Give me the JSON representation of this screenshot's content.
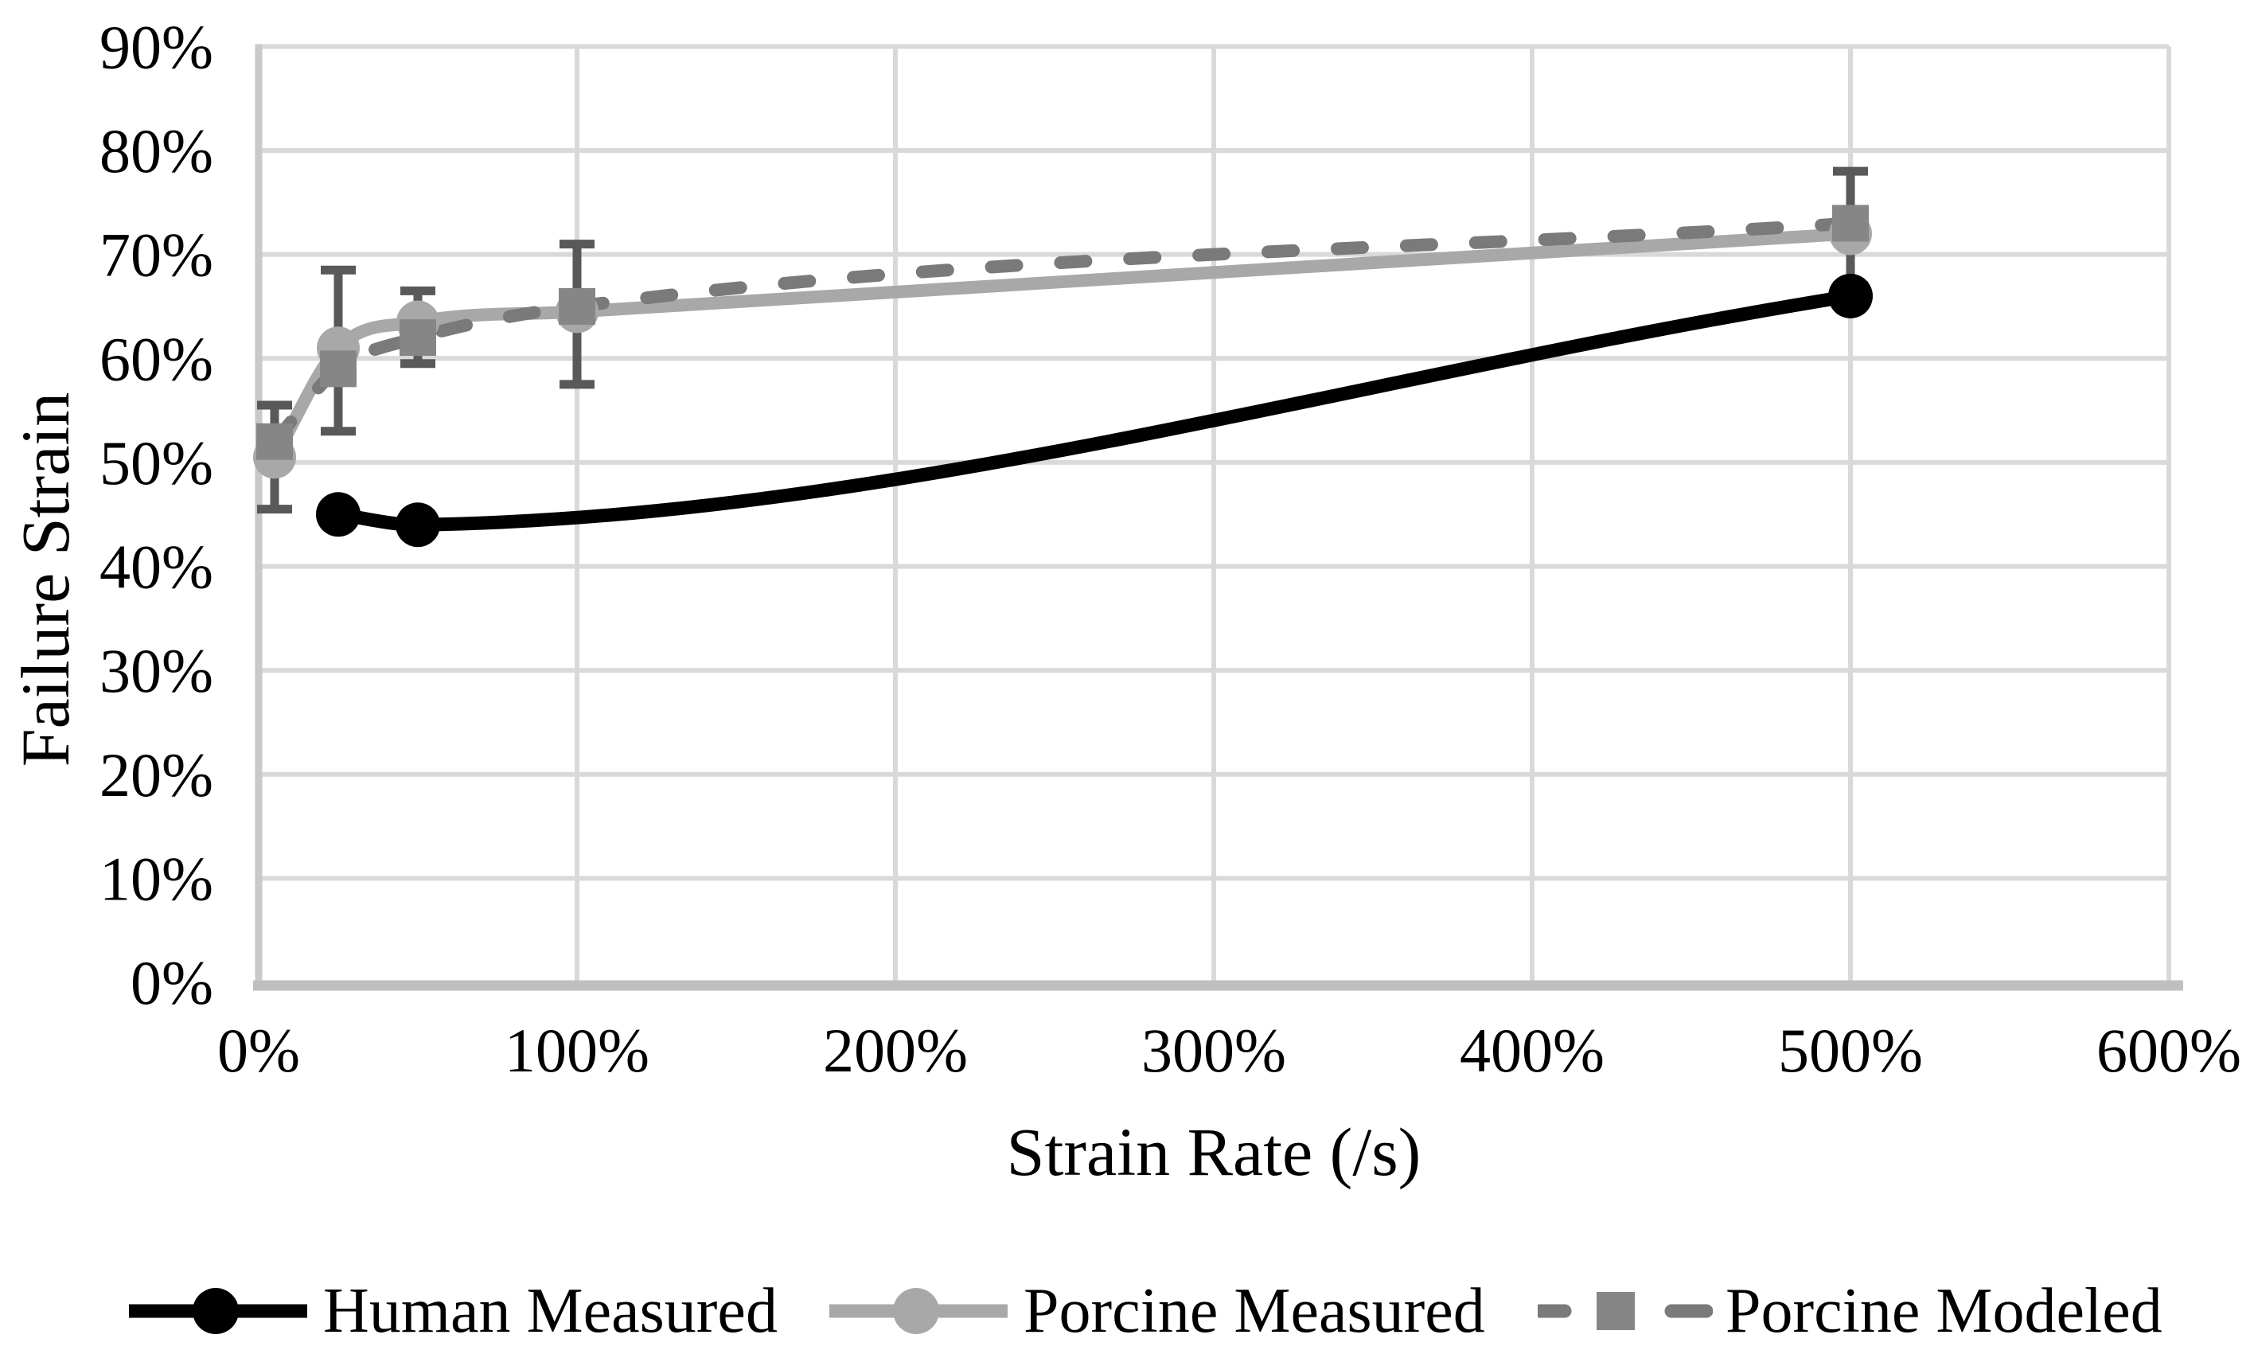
{
  "chart_data": {
    "type": "line",
    "xlabel": "Strain Rate (/s)",
    "ylabel": "Failure Strain",
    "xlim": [
      0,
      600
    ],
    "ylim": [
      0,
      90
    ],
    "grid": true,
    "legend_position": "bottom",
    "x_ticks": [
      {
        "value": 0,
        "label": "0%"
      },
      {
        "value": 100,
        "label": "100%"
      },
      {
        "value": 200,
        "label": "200%"
      },
      {
        "value": 300,
        "label": "300%"
      },
      {
        "value": 400,
        "label": "400%"
      },
      {
        "value": 500,
        "label": "500%"
      },
      {
        "value": 600,
        "label": "600%"
      }
    ],
    "y_ticks": [
      {
        "value": 0,
        "label": "0%"
      },
      {
        "value": 10,
        "label": "10%"
      },
      {
        "value": 20,
        "label": "20%"
      },
      {
        "value": 30,
        "label": "30%"
      },
      {
        "value": 40,
        "label": "40%"
      },
      {
        "value": 50,
        "label": "50%"
      },
      {
        "value": 60,
        "label": "60%"
      },
      {
        "value": 70,
        "label": "70%"
      },
      {
        "value": 80,
        "label": "80%"
      },
      {
        "value": 90,
        "label": "90%"
      }
    ],
    "series": [
      {
        "name": "Human Measured",
        "line": "solid",
        "marker": "circle",
        "color": "#000000",
        "marker_color": "#000000",
        "x": [
          25,
          50,
          500
        ],
        "y": [
          45,
          44,
          66
        ]
      },
      {
        "name": "Porcine Measured",
        "line": "solid",
        "marker": "circle",
        "color": "#a8a8a8",
        "marker_color": "#a8a8a8",
        "x": [
          5,
          25,
          50,
          100,
          500
        ],
        "y": [
          50.5,
          61,
          63.5,
          64.5,
          72
        ]
      },
      {
        "name": "Porcine Modeled",
        "line": "dashed",
        "marker": "square",
        "color": "#7a7a7a",
        "marker_color": "#868686",
        "x": [
          5,
          25,
          50,
          100,
          500
        ],
        "y": [
          52,
          59,
          62,
          65,
          73
        ]
      }
    ],
    "error_bars": {
      "color": "#595959",
      "points": [
        {
          "x": 5,
          "low": 45.5,
          "high": 55.5
        },
        {
          "x": 25,
          "low": 53,
          "high": 68.5
        },
        {
          "x": 50,
          "low": 59.5,
          "high": 66.5
        },
        {
          "x": 100,
          "low": 57.5,
          "high": 71
        },
        {
          "x": 500,
          "low": 67,
          "high": 78
        }
      ]
    },
    "colors": {
      "grid": "#d9d9d9",
      "plot_border": "#c9c9c9",
      "axis_line": "#bfbfbf",
      "text": "#000000",
      "background": "#ffffff"
    }
  }
}
